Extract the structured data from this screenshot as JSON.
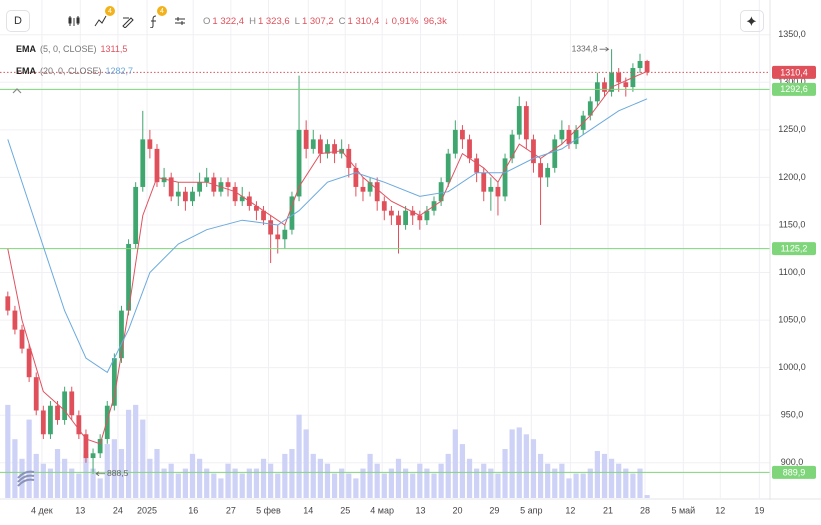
{
  "toolbar": {
    "interval": "D",
    "badges": [
      "4",
      "4"
    ],
    "ohlc": [
      {
        "key": "O",
        "value": "1 322,4"
      },
      {
        "key": "H",
        "value": "1 323,6"
      },
      {
        "key": "L",
        "value": "1 307,2"
      },
      {
        "key": "C",
        "value": "1 310,4"
      }
    ],
    "change": "↓ 0,91%",
    "volume": "96,3k"
  },
  "chart_data": {
    "type": "candlestick",
    "open": [
      1075,
      1060,
      1040,
      1020,
      990,
      955,
      930,
      960,
      945,
      975,
      950,
      930,
      905,
      910,
      925,
      960,
      1010,
      1060,
      1130,
      1190,
      1240,
      1230,
      1195,
      1200,
      1180,
      1185,
      1175,
      1185,
      1195,
      1200,
      1185,
      1195,
      1190,
      1175,
      1180,
      1170,
      1165,
      1155,
      1140,
      1135,
      1145,
      1180,
      1250,
      1230,
      1240,
      1225,
      1235,
      1225,
      1230,
      1210,
      1190,
      1185,
      1195,
      1175,
      1165,
      1160,
      1150,
      1165,
      1160,
      1155,
      1165,
      1175,
      1195,
      1225,
      1250,
      1240,
      1220,
      1205,
      1185,
      1190,
      1180,
      1220,
      1245,
      1275,
      1240,
      1215,
      1200,
      1210,
      1240,
      1250,
      1235,
      1250,
      1265,
      1280,
      1300,
      1290,
      1310,
      1300,
      1295,
      1315,
      1322.4
    ],
    "high": [
      1080,
      1065,
      1045,
      1025,
      995,
      960,
      965,
      965,
      980,
      980,
      955,
      935,
      915,
      930,
      965,
      1015,
      1065,
      1135,
      1195,
      1270,
      1250,
      1235,
      1210,
      1205,
      1195,
      1190,
      1190,
      1205,
      1210,
      1205,
      1200,
      1200,
      1195,
      1190,
      1185,
      1175,
      1170,
      1160,
      1150,
      1150,
      1185,
      1307,
      1260,
      1250,
      1245,
      1240,
      1240,
      1240,
      1235,
      1215,
      1200,
      1200,
      1200,
      1180,
      1170,
      1165,
      1170,
      1170,
      1165,
      1170,
      1180,
      1200,
      1230,
      1260,
      1255,
      1245,
      1225,
      1210,
      1200,
      1195,
      1225,
      1250,
      1285,
      1280,
      1245,
      1220,
      1215,
      1245,
      1260,
      1255,
      1255,
      1270,
      1285,
      1310,
      1305,
      1334.8,
      1315,
      1305,
      1320,
      1330,
      1323.6
    ],
    "low": [
      1055,
      1035,
      1015,
      985,
      950,
      925,
      925,
      940,
      940,
      945,
      925,
      900,
      888.5,
      905,
      920,
      955,
      1005,
      1055,
      1125,
      1185,
      1220,
      1190,
      1190,
      1175,
      1170,
      1165,
      1170,
      1180,
      1190,
      1180,
      1180,
      1180,
      1170,
      1170,
      1165,
      1155,
      1150,
      1110,
      1120,
      1125,
      1140,
      1175,
      1220,
      1225,
      1215,
      1220,
      1215,
      1220,
      1200,
      1180,
      1175,
      1180,
      1165,
      1155,
      1150,
      1120,
      1145,
      1150,
      1145,
      1150,
      1160,
      1170,
      1190,
      1220,
      1230,
      1215,
      1195,
      1175,
      1165,
      1160,
      1175,
      1215,
      1240,
      1230,
      1205,
      1150,
      1190,
      1205,
      1235,
      1230,
      1230,
      1245,
      1260,
      1275,
      1285,
      1285,
      1290,
      1285,
      1290,
      1310,
      1307.2
    ],
    "close": [
      1060,
      1040,
      1020,
      990,
      955,
      930,
      960,
      945,
      975,
      950,
      930,
      905,
      910,
      925,
      960,
      1010,
      1060,
      1130,
      1190,
      1240,
      1230,
      1195,
      1200,
      1180,
      1185,
      1175,
      1185,
      1195,
      1200,
      1185,
      1195,
      1190,
      1175,
      1180,
      1170,
      1165,
      1155,
      1140,
      1135,
      1145,
      1180,
      1250,
      1230,
      1240,
      1225,
      1235,
      1225,
      1230,
      1210,
      1190,
      1185,
      1195,
      1175,
      1165,
      1160,
      1150,
      1165,
      1160,
      1155,
      1165,
      1175,
      1195,
      1225,
      1250,
      1240,
      1220,
      1205,
      1185,
      1190,
      1180,
      1220,
      1245,
      1275,
      1240,
      1215,
      1200,
      1210,
      1240,
      1250,
      1235,
      1250,
      1265,
      1280,
      1300,
      1290,
      1310,
      1300,
      1295,
      1315,
      1322.4,
      1310.4
    ],
    "volume": [
      95,
      60,
      40,
      80,
      45,
      35,
      30,
      50,
      40,
      30,
      25,
      45,
      30,
      20,
      55,
      60,
      50,
      90,
      95,
      80,
      40,
      50,
      30,
      35,
      25,
      30,
      45,
      40,
      30,
      25,
      20,
      35,
      30,
      25,
      30,
      30,
      40,
      35,
      25,
      45,
      50,
      85,
      70,
      45,
      40,
      35,
      25,
      30,
      25,
      20,
      30,
      45,
      35,
      25,
      30,
      40,
      30,
      25,
      35,
      30,
      25,
      35,
      45,
      70,
      55,
      40,
      30,
      35,
      30,
      25,
      50,
      70,
      72,
      65,
      60,
      45,
      35,
      30,
      35,
      20,
      25,
      25,
      30,
      48,
      45,
      40,
      35,
      30,
      25,
      30,
      3
    ],
    "up_color": "#3fa66f",
    "down_color": "#e0505b",
    "volume_color": "#cdd2f6",
    "xlim": [
      -1.1,
      107.3
    ],
    "xticks": [
      {
        "value": 4.8,
        "label": "4 дек"
      },
      {
        "value": 10.2,
        "label": "13"
      },
      {
        "value": 15.5,
        "label": "24"
      },
      {
        "value": 19.6,
        "label": "2025"
      },
      {
        "value": 26.1,
        "label": "16"
      },
      {
        "value": 31.4,
        "label": "27"
      },
      {
        "value": 36.7,
        "label": "5 фев"
      },
      {
        "value": 42.3,
        "label": "14"
      },
      {
        "value": 47.5,
        "label": "25"
      },
      {
        "value": 52.7,
        "label": "4 мар"
      },
      {
        "value": 58.1,
        "label": "13"
      },
      {
        "value": 63.3,
        "label": "20"
      },
      {
        "value": 68.5,
        "label": "29"
      },
      {
        "value": 73.7,
        "label": "5 апр"
      },
      {
        "value": 79.2,
        "label": "12"
      },
      {
        "value": 84.5,
        "label": "21"
      },
      {
        "value": 89.7,
        "label": "28"
      },
      {
        "value": 95.1,
        "label": "5 май"
      },
      {
        "value": 100.3,
        "label": "12"
      },
      {
        "value": 105.8,
        "label": "19"
      }
    ],
    "ylim": [
      863,
      1376
    ],
    "yticks": [
      {
        "value": 1350,
        "label": "1350,0"
      },
      {
        "value": 1300,
        "label": "1300,0"
      },
      {
        "value": 1250,
        "label": "1250,0"
      },
      {
        "value": 1200,
        "label": "1200,0"
      },
      {
        "value": 1150,
        "label": "1150,0"
      },
      {
        "value": 1100,
        "label": "1100,0"
      },
      {
        "value": 1050,
        "label": "1050,0"
      },
      {
        "value": 1000,
        "label": "1000,0"
      },
      {
        "value": 950,
        "label": "950,0"
      },
      {
        "value": 900,
        "label": "900,0"
      }
    ],
    "vlim": [
      0,
      100
    ],
    "grid": true,
    "indicators": [
      {
        "name": "EMA",
        "params": "(5, 0, CLOSE)",
        "color": "#e05260",
        "value_label": "1311,5",
        "x": [
          0,
          2,
          5,
          8,
          11,
          13,
          15,
          17,
          19,
          21,
          24,
          28,
          32,
          36,
          39,
          41,
          44,
          47,
          50,
          54,
          58,
          61,
          64,
          67,
          69,
          72,
          75,
          78,
          82,
          85,
          88,
          90
        ],
        "values": [
          1125,
          1050,
          975,
          955,
          925,
          920,
          970,
          1060,
          1160,
          1200,
          1195,
          1195,
          1185,
          1165,
          1150,
          1190,
          1225,
          1228,
          1200,
          1175,
          1160,
          1175,
          1225,
          1210,
          1195,
          1235,
          1220,
          1235,
          1265,
          1295,
          1305,
          1311.5
        ]
      },
      {
        "name": "EMA",
        "params": "(20, 0, CLOSE)",
        "color": "#6aa9de",
        "value_label": "1282,7",
        "x": [
          0,
          4,
          8,
          11,
          14,
          17,
          20,
          24,
          28,
          33,
          38,
          41,
          45,
          49,
          53,
          58,
          62,
          66,
          70,
          74,
          78,
          82,
          86,
          90
        ],
        "values": [
          1240,
          1150,
          1060,
          1010,
          995,
          1040,
          1100,
          1130,
          1145,
          1155,
          1150,
          1165,
          1195,
          1205,
          1195,
          1180,
          1185,
          1205,
          1205,
          1220,
          1230,
          1250,
          1270,
          1282.7
        ]
      }
    ],
    "levels": [
      {
        "value": 1292.6,
        "label": "1292,6"
      },
      {
        "value": 1125.2,
        "label": "1125,2"
      },
      {
        "value": 889.9,
        "label": "889,9"
      }
    ],
    "level_color": "#7fd67a",
    "last": {
      "value": 1310.4,
      "label": "1310,4",
      "color": "#e0505b"
    },
    "annotations": [
      {
        "index": 85,
        "value": 1334.8,
        "label": "1334,8",
        "side": "left"
      },
      {
        "index": 12,
        "value": 888.5,
        "label": "888,5",
        "side": "right"
      }
    ]
  }
}
